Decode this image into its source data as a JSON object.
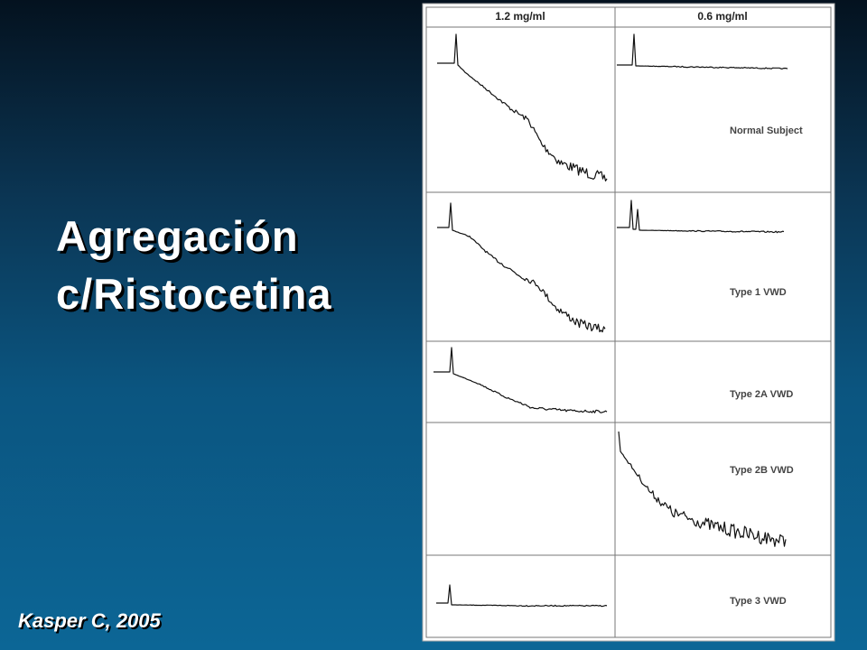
{
  "slide": {
    "title_lines": [
      "Agregación",
      "c/Ristocetina"
    ],
    "citation": "Kasper C, 2005"
  },
  "figure": {
    "columns": [
      "1.2 mg/ml",
      "0.6 mg/ml"
    ],
    "rows": [
      "Normal Subject",
      "Type 1 VWD",
      "Type 2A VWD",
      "Type 2B VWD",
      "Type 3 VWD"
    ]
  }
}
